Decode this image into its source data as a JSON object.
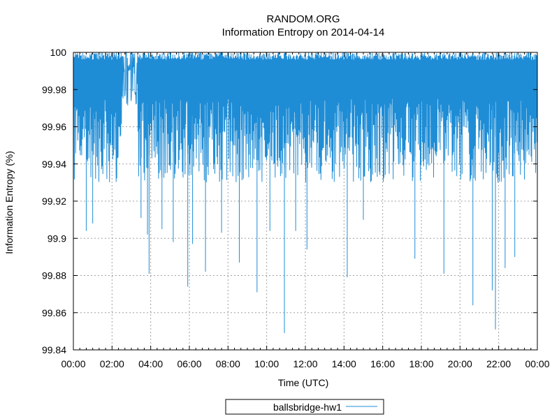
{
  "chart_data": {
    "type": "line",
    "title": "RANDOM.ORG",
    "subtitle": "Information Entropy on 2014-04-14",
    "xlabel": "Time (UTC)",
    "ylabel": "Information Entropy (%)",
    "xlim": [
      "00:00",
      "00:00"
    ],
    "ylim": [
      99.84,
      100
    ],
    "x_ticks": [
      "00:00",
      "02:00",
      "04:00",
      "06:00",
      "08:00",
      "10:00",
      "12:00",
      "14:00",
      "16:00",
      "18:00",
      "20:00",
      "22:00",
      "00:00"
    ],
    "y_ticks": [
      "99.84",
      "99.86",
      "99.88",
      "99.9",
      "99.92",
      "99.94",
      "99.96",
      "99.98",
      "100"
    ],
    "grid": true,
    "legend_position": "bottom-center",
    "series": [
      {
        "name": "ballsbridge-hw1",
        "color": "#1f8dd6",
        "typical_range": [
          99.95,
          100
        ],
        "notable_minima": [
          {
            "x": "00:40",
            "y": 99.904
          },
          {
            "x": "01:00",
            "y": 99.908
          },
          {
            "x": "03:30",
            "y": 99.911
          },
          {
            "x": "03:50",
            "y": 99.902
          },
          {
            "x": "03:55",
            "y": 99.881
          },
          {
            "x": "04:35",
            "y": 99.905
          },
          {
            "x": "05:10",
            "y": 99.898
          },
          {
            "x": "05:55",
            "y": 99.874
          },
          {
            "x": "06:10",
            "y": 99.897
          },
          {
            "x": "06:50",
            "y": 99.882
          },
          {
            "x": "07:40",
            "y": 99.903
          },
          {
            "x": "08:35",
            "y": 99.887
          },
          {
            "x": "09:30",
            "y": 99.871
          },
          {
            "x": "10:10",
            "y": 99.904
          },
          {
            "x": "10:55",
            "y": 99.849
          },
          {
            "x": "11:30",
            "y": 99.904
          },
          {
            "x": "12:05",
            "y": 99.894
          },
          {
            "x": "14:10",
            "y": 99.879
          },
          {
            "x": "15:00",
            "y": 99.91
          },
          {
            "x": "17:40",
            "y": 99.889
          },
          {
            "x": "19:10",
            "y": 99.881
          },
          {
            "x": "20:40",
            "y": 99.864
          },
          {
            "x": "21:40",
            "y": 99.872
          },
          {
            "x": "21:50",
            "y": 99.851
          },
          {
            "x": "22:20",
            "y": 99.884
          },
          {
            "x": "22:50",
            "y": 99.89
          }
        ],
        "saturated_segment": {
          "start": "02:30",
          "end": "03:20",
          "range": [
            99.96,
            100
          ]
        }
      }
    ]
  }
}
